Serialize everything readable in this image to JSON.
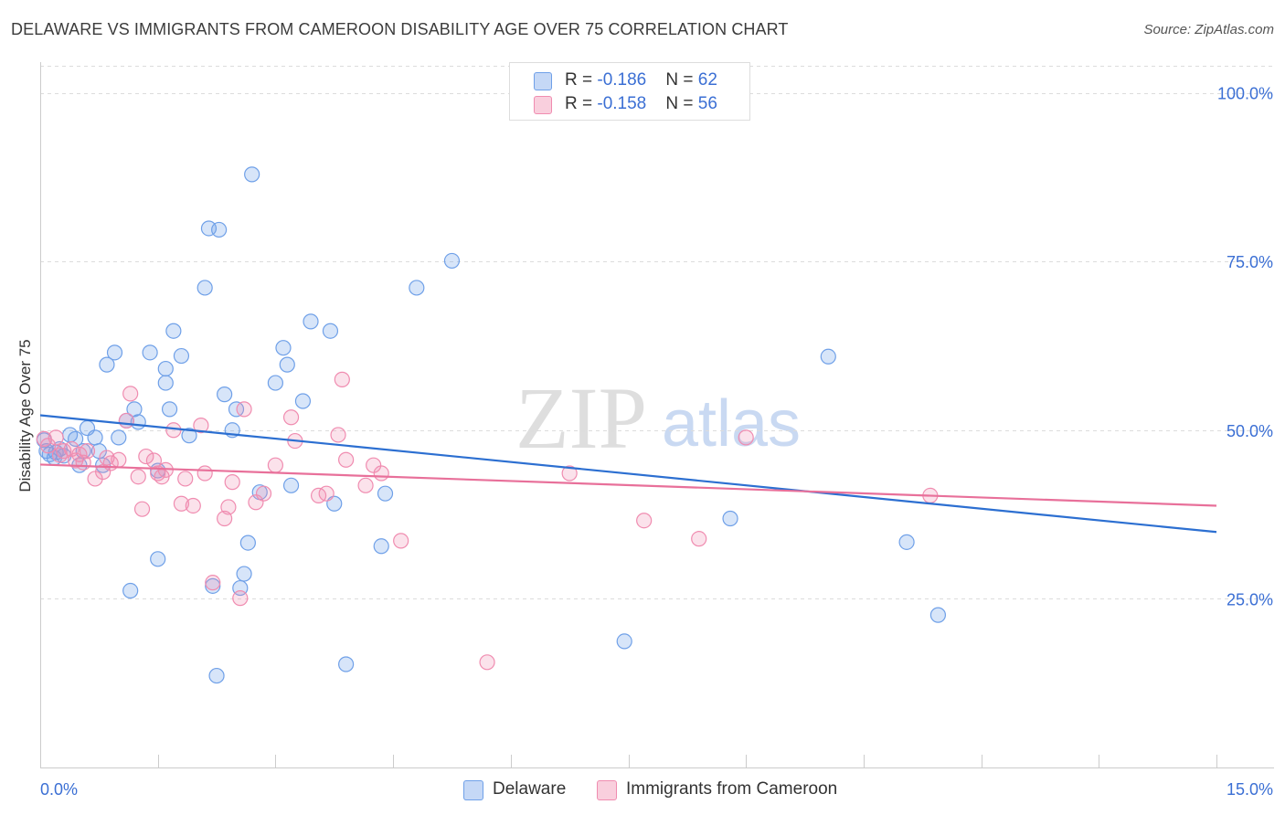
{
  "title": "DELAWARE VS IMMIGRANTS FROM CAMEROON DISABILITY AGE OVER 75 CORRELATION CHART",
  "source": "Source: ZipAtlas.com",
  "watermark": {
    "zip": "ZIP",
    "atlas": "atlas"
  },
  "legend": {
    "rows": [
      {
        "r_label": "R = ",
        "r_value": "-0.186",
        "n_label": "N = ",
        "n_value": "62",
        "color": "#6fa0e8"
      },
      {
        "r_label": "R = ",
        "r_value": "-0.158",
        "n_label": "N = ",
        "n_value": "56",
        "color": "#f08cb0"
      }
    ]
  },
  "chart_data": {
    "type": "scatter",
    "title": "DELAWARE VS IMMIGRANTS FROM CAMEROON DISABILITY AGE OVER 75 CORRELATION CHART",
    "xlabel": "",
    "ylabel": "Disability Age Over 75",
    "xlim": [
      0,
      15
    ],
    "ylim": [
      0,
      104
    ],
    "x_tick_labels": [
      "0.0%",
      "15.0%"
    ],
    "y_ticks": [
      25,
      50,
      75,
      100
    ],
    "y_tick_labels": [
      "25.0%",
      "50.0%",
      "75.0%",
      "100.0%"
    ],
    "grid": "horizontal dashed",
    "legend_position": "top-center",
    "series": [
      {
        "name": "Delaware",
        "color": "#6fa0e8",
        "trend": {
          "x": [
            0,
            15
          ],
          "y": [
            52.2,
            34.9
          ]
        },
        "points": [
          [
            0.05,
            48.5
          ],
          [
            0.12,
            46.4
          ],
          [
            0.2,
            46.7
          ],
          [
            0.25,
            47.2
          ],
          [
            0.3,
            46.2
          ],
          [
            0.38,
            49.3
          ],
          [
            0.45,
            48.7
          ],
          [
            0.5,
            44.8
          ],
          [
            0.55,
            46.9
          ],
          [
            0.6,
            50.3
          ],
          [
            0.7,
            48.9
          ],
          [
            0.75,
            46.9
          ],
          [
            0.8,
            44.8
          ],
          [
            0.85,
            59.7
          ],
          [
            0.95,
            61.5
          ],
          [
            1.0,
            48.9
          ],
          [
            1.1,
            51.4
          ],
          [
            1.15,
            26.2
          ],
          [
            1.2,
            53.1
          ],
          [
            1.25,
            51.2
          ],
          [
            1.4,
            61.5
          ],
          [
            1.5,
            44.0
          ],
          [
            1.5,
            30.9
          ],
          [
            1.6,
            59.1
          ],
          [
            1.6,
            57.0
          ],
          [
            1.65,
            53.1
          ],
          [
            1.7,
            64.7
          ],
          [
            1.8,
            61.0
          ],
          [
            1.9,
            49.2
          ],
          [
            2.1,
            71.1
          ],
          [
            2.15,
            79.9
          ],
          [
            2.2,
            26.9
          ],
          [
            2.25,
            13.6
          ],
          [
            2.28,
            79.7
          ],
          [
            2.35,
            55.3
          ],
          [
            2.45,
            50.0
          ],
          [
            2.5,
            53.1
          ],
          [
            2.55,
            26.6
          ],
          [
            2.6,
            28.7
          ],
          [
            2.65,
            33.3
          ],
          [
            2.7,
            87.9
          ],
          [
            2.8,
            40.8
          ],
          [
            3.0,
            57.0
          ],
          [
            3.1,
            62.2
          ],
          [
            3.15,
            59.7
          ],
          [
            3.2,
            41.8
          ],
          [
            3.35,
            54.3
          ],
          [
            3.45,
            66.1
          ],
          [
            3.7,
            64.7
          ],
          [
            3.75,
            39.1
          ],
          [
            3.9,
            15.3
          ],
          [
            4.35,
            32.8
          ],
          [
            4.4,
            40.6
          ],
          [
            4.8,
            71.1
          ],
          [
            5.25,
            75.1
          ],
          [
            7.45,
            18.7
          ],
          [
            8.8,
            36.9
          ],
          [
            10.05,
            60.9
          ],
          [
            11.05,
            33.4
          ],
          [
            11.45,
            22.6
          ],
          [
            0.08,
            46.9
          ],
          [
            0.18,
            45.9
          ]
        ]
      },
      {
        "name": "Immigrants from Cameroon",
        "color": "#f08cb0",
        "trend": {
          "x": [
            0,
            15
          ],
          "y": [
            44.9,
            38.8
          ]
        },
        "points": [
          [
            0.05,
            48.7
          ],
          [
            0.1,
            47.7
          ],
          [
            0.2,
            48.9
          ],
          [
            0.25,
            46.3
          ],
          [
            0.3,
            46.9
          ],
          [
            0.4,
            47.2
          ],
          [
            0.45,
            45.5
          ],
          [
            0.5,
            46.4
          ],
          [
            0.55,
            45.2
          ],
          [
            0.6,
            46.9
          ],
          [
            0.7,
            42.8
          ],
          [
            0.8,
            43.8
          ],
          [
            0.85,
            45.9
          ],
          [
            0.9,
            45.1
          ],
          [
            1.0,
            45.6
          ],
          [
            1.1,
            51.4
          ],
          [
            1.15,
            55.4
          ],
          [
            1.25,
            43.1
          ],
          [
            1.3,
            38.3
          ],
          [
            1.35,
            46.1
          ],
          [
            1.45,
            45.5
          ],
          [
            1.5,
            43.6
          ],
          [
            1.55,
            43.1
          ],
          [
            1.6,
            44.1
          ],
          [
            1.7,
            50.0
          ],
          [
            1.8,
            39.1
          ],
          [
            1.85,
            42.8
          ],
          [
            1.95,
            38.8
          ],
          [
            2.05,
            50.7
          ],
          [
            2.1,
            43.6
          ],
          [
            2.2,
            27.4
          ],
          [
            2.35,
            36.9
          ],
          [
            2.4,
            38.6
          ],
          [
            2.45,
            42.3
          ],
          [
            2.55,
            25.1
          ],
          [
            2.6,
            53.1
          ],
          [
            2.75,
            39.3
          ],
          [
            2.85,
            40.6
          ],
          [
            3.0,
            44.8
          ],
          [
            3.2,
            51.9
          ],
          [
            3.25,
            48.4
          ],
          [
            3.55,
            40.3
          ],
          [
            3.65,
            40.6
          ],
          [
            3.8,
            49.3
          ],
          [
            3.85,
            57.5
          ],
          [
            3.9,
            45.6
          ],
          [
            4.15,
            41.8
          ],
          [
            4.25,
            44.8
          ],
          [
            4.35,
            43.6
          ],
          [
            4.6,
            33.6
          ],
          [
            5.7,
            15.6
          ],
          [
            6.75,
            43.6
          ],
          [
            7.7,
            36.6
          ],
          [
            8.4,
            33.9
          ],
          [
            9.0,
            48.9
          ],
          [
            11.35,
            40.3
          ]
        ]
      }
    ]
  }
}
